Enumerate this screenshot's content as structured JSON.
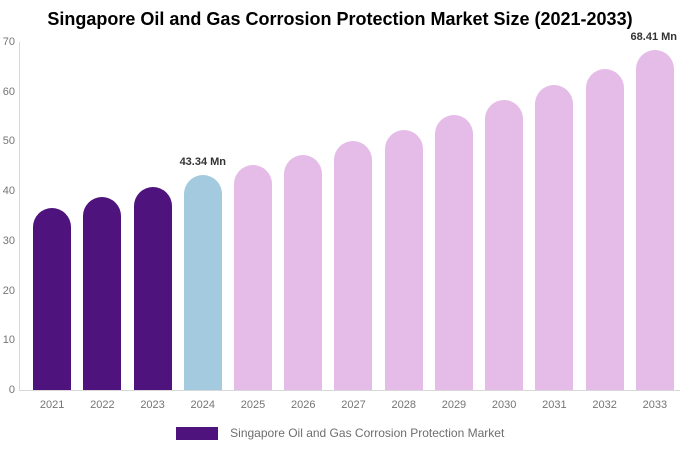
{
  "title": "Singapore Oil and Gas Corrosion Protection Market Size (2021-2033)",
  "legend": {
    "label": "Singapore Oil and Gas Corrosion Protection Market",
    "swatch_color": "#4e137c"
  },
  "colors": {
    "historical_bar": "#4e137c",
    "base_year_bar": "#a3cadf",
    "forecast_bar": "#e4bce7",
    "axis_line": "#d8d8d8",
    "tick_text": "#757575",
    "data_label_text": "#333333",
    "title_text": "#000000"
  },
  "chart_data": {
    "type": "bar",
    "title": "Singapore Oil and Gas Corrosion Protection Market Size (2021-2033)",
    "unit": "Mn",
    "categories": [
      "2021",
      "2022",
      "2023",
      "2024",
      "2025",
      "2026",
      "2027",
      "2028",
      "2029",
      "2030",
      "2031",
      "2032",
      "2033"
    ],
    "values": [
      36.7,
      38.9,
      40.9,
      43.34,
      45.2,
      47.2,
      50.0,
      52.3,
      55.3,
      58.4,
      61.4,
      64.5,
      68.41
    ],
    "bar_roles": [
      "historical",
      "historical",
      "historical",
      "base_year",
      "forecast",
      "forecast",
      "forecast",
      "forecast",
      "forecast",
      "forecast",
      "forecast",
      "forecast",
      "forecast"
    ],
    "data_labels": [
      {
        "category": "2024",
        "text": "43.34 Mn"
      },
      {
        "category": "2033",
        "text": "68.41 Mn"
      }
    ],
    "xlabel": "",
    "ylabel": "",
    "ylim": [
      0,
      70
    ],
    "yticks": [
      0,
      10,
      20,
      30,
      40,
      50,
      60,
      70
    ],
    "grid": false,
    "legend_position": "bottom",
    "legend_entries": [
      "Singapore Oil and Gas Corrosion Protection Market"
    ]
  }
}
